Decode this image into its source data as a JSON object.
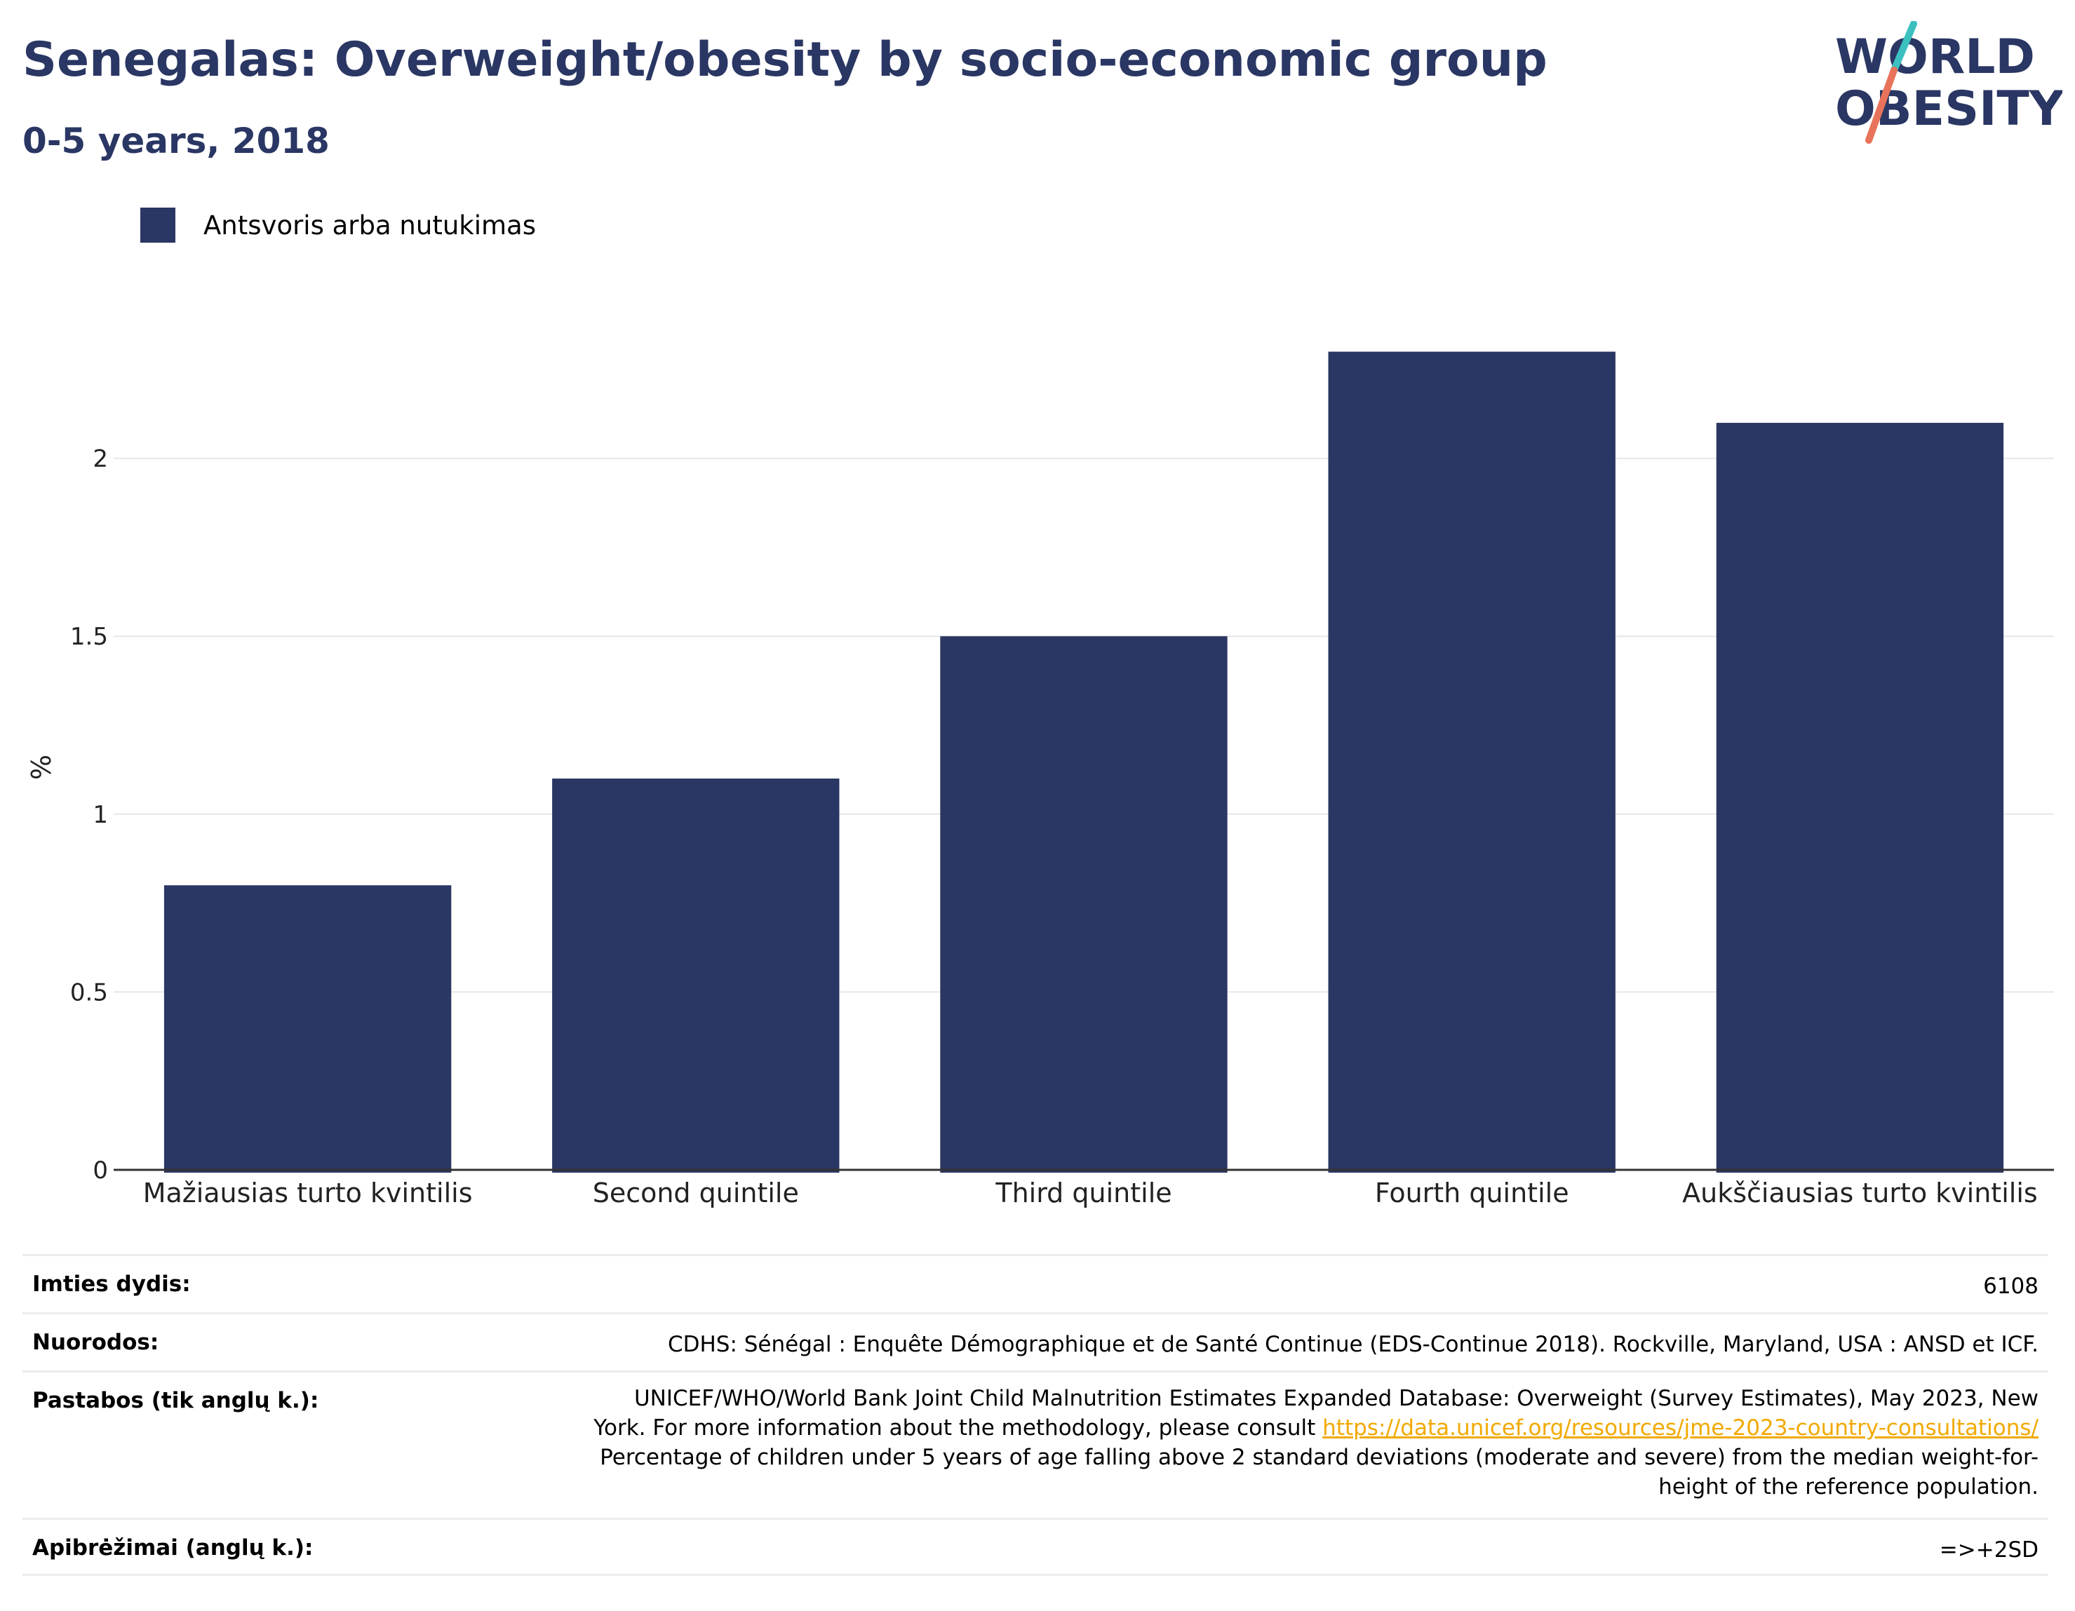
{
  "header": {
    "title": "Senegalas: Overweight/obesity by socio-economic group",
    "subtitle": "0-5 years, 2018"
  },
  "logo": {
    "line1": "WORLD",
    "line2": "OBESITY",
    "colors": {
      "text": "#2a3663",
      "slash_top": "#3bbfbf",
      "slash_bottom": "#e8735a"
    }
  },
  "legend": {
    "label": "Antsvoris arba nutukimas",
    "color": "#2a3663"
  },
  "chart_data": {
    "type": "bar",
    "categories": [
      "Mažiausias turto kvintilis",
      "Second quintile",
      "Third quintile",
      "Fourth quintile",
      "Aukščiausias turto kvintilis"
    ],
    "series": [
      {
        "name": "Antsvoris arba nutukimas",
        "values": [
          0.8,
          1.1,
          1.5,
          2.3,
          2.1
        ]
      }
    ],
    "ylabel": "%",
    "ylim": [
      0,
      2.5
    ],
    "yticks": [
      0,
      0.5,
      1,
      1.5,
      2
    ],
    "ytick_labels": [
      "0",
      "0.5",
      "1",
      "1.5",
      "2"
    ],
    "grid": true,
    "bar_color": "#2a3663",
    "legend_position": "top-left"
  },
  "info": {
    "sample_size_label": "Imties dydis:",
    "sample_size_value": "6108",
    "references_label": "Nuorodos:",
    "references_value": "CDHS: Sénégal : Enquête Démographique et de Santé Continue (EDS-Continue 2018). Rockville, Maryland, USA : ANSD et ICF.",
    "notes_label": "Pastabos (tik anglų k.):",
    "notes_line1": "UNICEF/WHO/World Bank Joint Child Malnutrition Estimates Expanded Database: Overweight (Survey Estimates), May 2023, New",
    "notes_line2_prefix": "York. For more information about the methodology, please consult ",
    "notes_link": "https://data.unicef.org/resources/jme-2023-country-consultations/",
    "notes_line3": "Percentage of children under 5 years of age falling above 2 standard deviations (moderate and severe) from the median weight-for-",
    "notes_line4": "height of the reference population.",
    "definitions_label": "Apibrėžimai (anglų k.):",
    "definitions_value": "=>+2SD"
  }
}
